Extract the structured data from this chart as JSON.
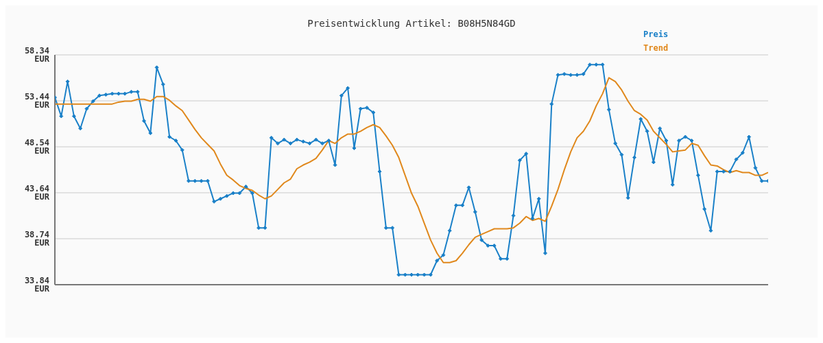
{
  "chart_data": {
    "type": "line",
    "title": "Preisentwicklung Artikel: B08H5N84GD",
    "categories": [
      null,
      null,
      null,
      null,
      null,
      null,
      null,
      null,
      null,
      null,
      null,
      null,
      null,
      null,
      null,
      null,
      null,
      null,
      null,
      null,
      null,
      null,
      null,
      null,
      null,
      null,
      null,
      null,
      null,
      null,
      null,
      null,
      null,
      null,
      null,
      null,
      null,
      null,
      null,
      null,
      null,
      null,
      null,
      null,
      null,
      null,
      null,
      null,
      null,
      null,
      null,
      null,
      null,
      null,
      null,
      null,
      null,
      null,
      null,
      null,
      null,
      null,
      null,
      null,
      null,
      null,
      null,
      null,
      null,
      null,
      null,
      null,
      null,
      null,
      null,
      null,
      null,
      null,
      null,
      null,
      null,
      null,
      null,
      null,
      null,
      null,
      null,
      null,
      null,
      null,
      null,
      null,
      null,
      null,
      null,
      null,
      null,
      null,
      null,
      null,
      null,
      null,
      null,
      null,
      null,
      null,
      null,
      null,
      null,
      null,
      null,
      null,
      null
    ],
    "series": [
      {
        "name": "Preis",
        "color": "#1a80c8",
        "marker": "diamond",
        "values": [
          53.8,
          51.8,
          55.5,
          51.8,
          50.5,
          52.6,
          53.4,
          54.0,
          54.1,
          54.2,
          54.2,
          54.2,
          54.4,
          54.4,
          51.3,
          50.0,
          57.0,
          55.2,
          49.6,
          49.2,
          48.2,
          44.9,
          44.9,
          44.9,
          44.9,
          42.7,
          43.0,
          43.3,
          43.6,
          43.6,
          44.3,
          43.6,
          39.9,
          39.9,
          49.5,
          48.9,
          49.3,
          48.9,
          49.3,
          49.1,
          48.9,
          49.3,
          48.9,
          49.2,
          46.6,
          54.0,
          54.8,
          48.4,
          52.6,
          52.7,
          52.2,
          45.9,
          39.9,
          39.9,
          34.9,
          34.9,
          34.9,
          34.9,
          34.9,
          34.9,
          36.4,
          37.0,
          39.6,
          42.3,
          42.3,
          44.2,
          41.6,
          38.6,
          38.0,
          38.0,
          36.6,
          36.6,
          41.2,
          47.1,
          47.8,
          40.9,
          43.0,
          37.2,
          53.1,
          56.2,
          56.3,
          56.2,
          56.2,
          56.3,
          57.3,
          57.3,
          57.3,
          52.5,
          48.9,
          47.7,
          43.1,
          47.4,
          51.5,
          50.2,
          46.9,
          50.5,
          49.2,
          44.5,
          49.2,
          49.6,
          49.2,
          45.5,
          41.9,
          39.6,
          45.9,
          45.9,
          45.9,
          47.2,
          47.9,
          49.6,
          46.3,
          44.9,
          44.9
        ]
      },
      {
        "name": "Trend",
        "color": "#e0881c",
        "marker": "none",
        "values": [
          53.1,
          53.1,
          53.1,
          53.1,
          53.1,
          53.1,
          53.1,
          53.1,
          53.1,
          53.1,
          53.3,
          53.4,
          53.4,
          53.6,
          53.6,
          53.4,
          53.9,
          53.9,
          53.5,
          52.9,
          52.4,
          51.4,
          50.4,
          49.5,
          48.8,
          48.1,
          46.7,
          45.5,
          45.0,
          44.4,
          44.1,
          43.9,
          43.4,
          43.0,
          43.3,
          44.0,
          44.7,
          45.1,
          46.2,
          46.6,
          46.9,
          47.3,
          48.2,
          49.2,
          48.9,
          49.5,
          49.9,
          49.9,
          50.2,
          50.6,
          50.9,
          50.6,
          49.7,
          48.7,
          47.4,
          45.5,
          43.6,
          42.2,
          40.4,
          38.6,
          37.2,
          36.2,
          36.2,
          36.4,
          37.2,
          38.1,
          38.9,
          39.2,
          39.5,
          39.8,
          39.8,
          39.8,
          39.9,
          40.4,
          41.1,
          40.7,
          40.9,
          40.6,
          42.2,
          44.0,
          46.1,
          48.0,
          49.5,
          50.2,
          51.3,
          52.9,
          54.2,
          55.9,
          55.5,
          54.6,
          53.4,
          52.4,
          52.0,
          51.4,
          50.2,
          49.5,
          48.8,
          48.0,
          48.1,
          48.2,
          48.9,
          48.7,
          47.6,
          46.6,
          46.5,
          46.1,
          45.8,
          46.0,
          45.8,
          45.8,
          45.5,
          45.5,
          45.8
        ]
      }
    ],
    "ylim": [
      33.84,
      58.34
    ],
    "yticks": [
      {
        "value": 33.84,
        "label": "33.84 EUR"
      },
      {
        "value": 38.74,
        "label": "38.74 EUR"
      },
      {
        "value": 43.64,
        "label": "43.64 EUR"
      },
      {
        "value": 48.54,
        "label": "48.54 EUR"
      },
      {
        "value": 53.44,
        "label": "53.44 EUR"
      },
      {
        "value": 58.34,
        "label": "58.34 EUR"
      }
    ],
    "grid": "y",
    "legend": "top right",
    "line_style": "solid"
  }
}
